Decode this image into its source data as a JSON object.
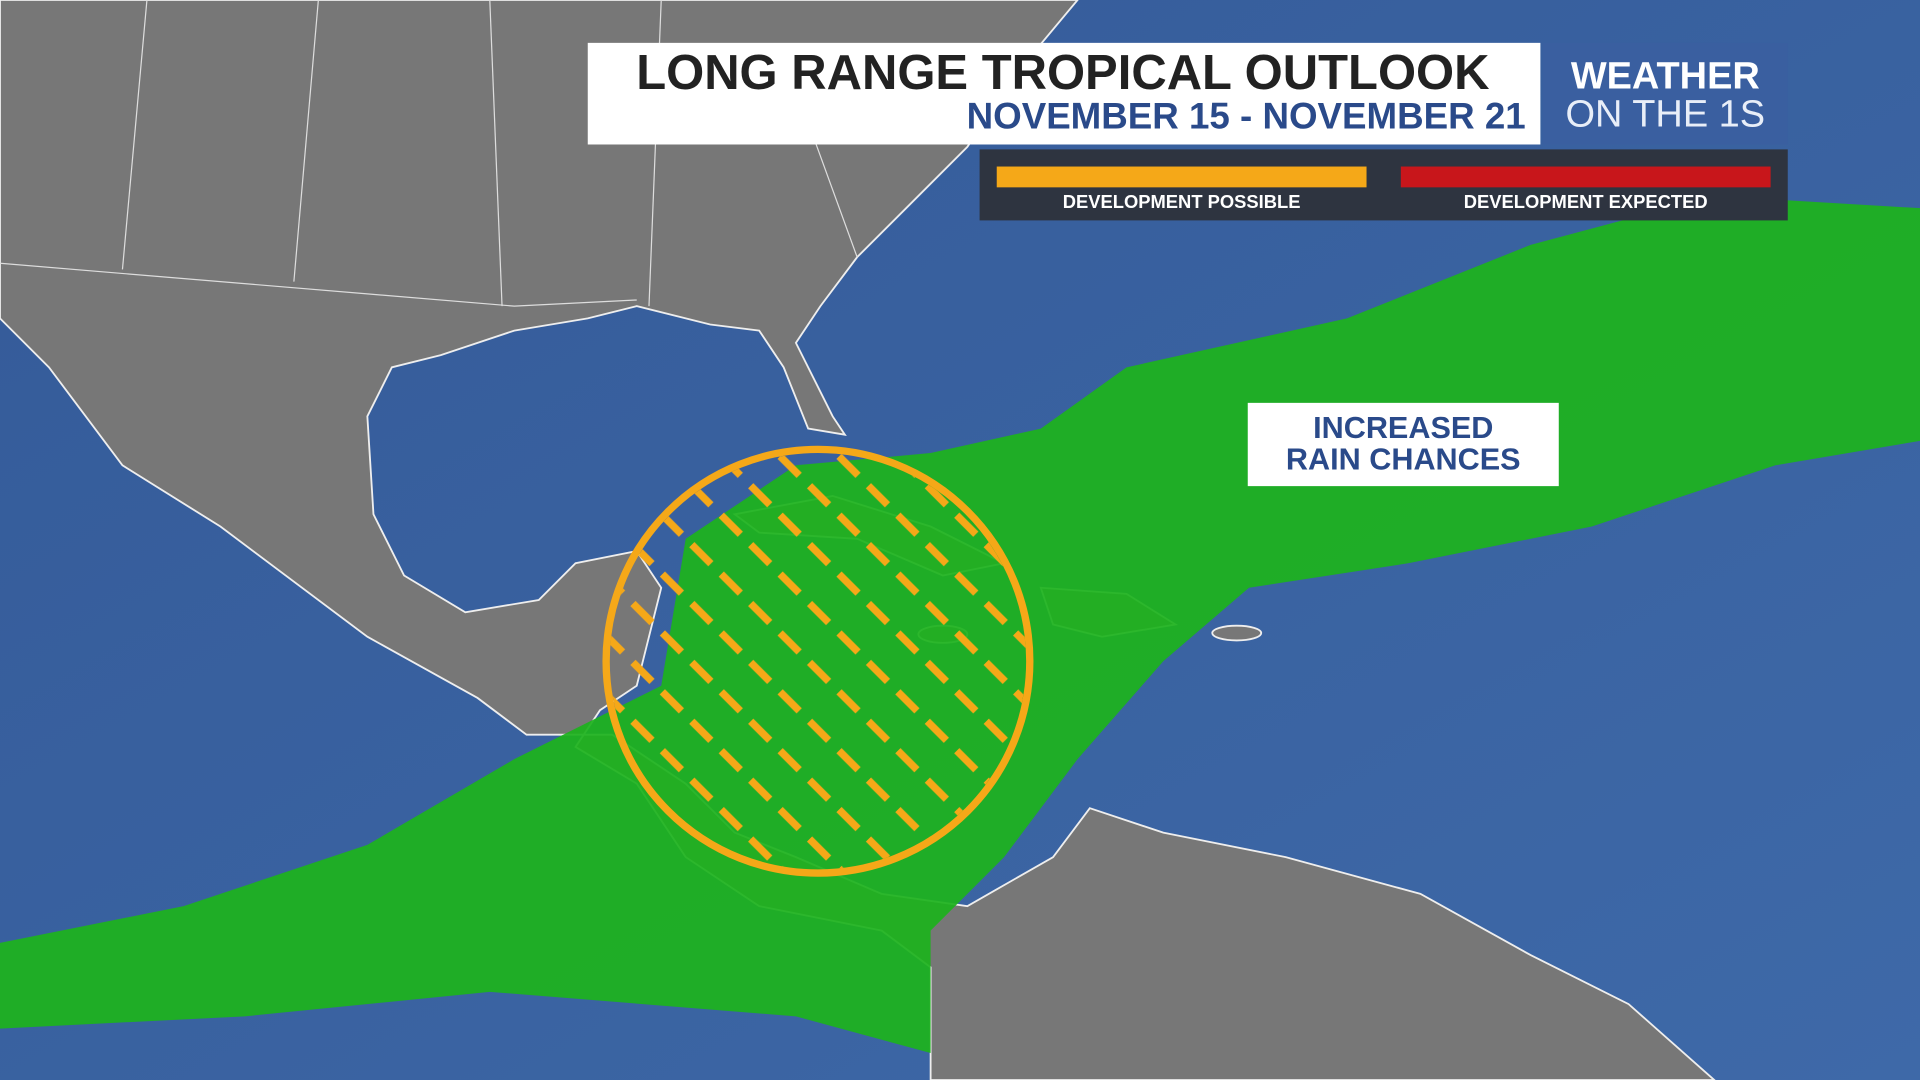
{
  "header": {
    "title": "LONG RANGE TROPICAL OUTLOOK",
    "dates": "NOVEMBER 15 - NOVEMBER 21"
  },
  "brand": {
    "line1": "WEATHER",
    "line2": "ON THE 1S"
  },
  "legend": [
    {
      "label": "DEVELOPMENT POSSIBLE",
      "color": "#f5a818"
    },
    {
      "label": "DEVELOPMENT EXPECTED",
      "color": "#c8161b"
    }
  ],
  "annotation": [
    "INCREASED",
    "RAIN CHANCES"
  ]
}
